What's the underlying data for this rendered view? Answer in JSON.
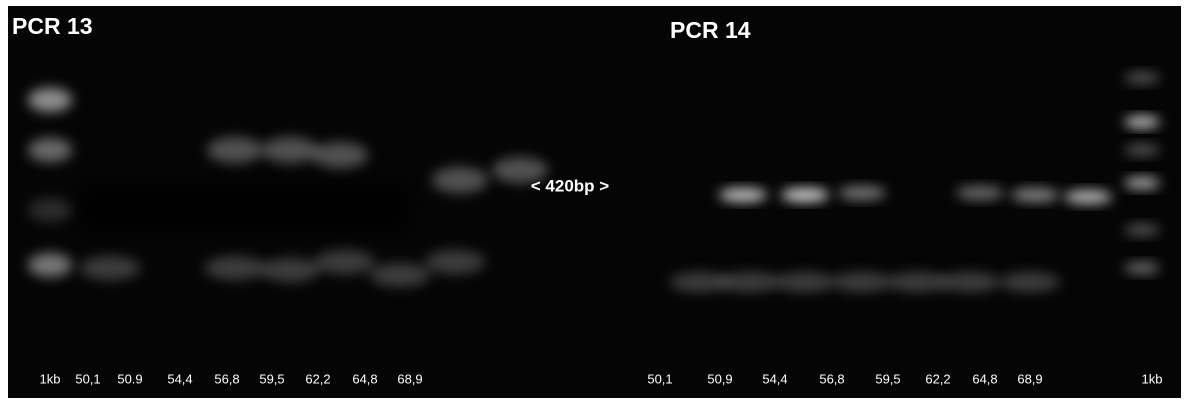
{
  "panels": [
    {
      "title": "PCR 13",
      "lanes": [
        "1kb",
        "50,1",
        "50.9",
        "54,4",
        "56,8",
        "59,5",
        "62,2",
        "64,8",
        "68,9"
      ]
    },
    {
      "title": "PCR 14",
      "lanes": [
        "50,1",
        "50,9",
        "54,4",
        "56,8",
        "59,5",
        "62,2",
        "64,8",
        "68,9",
        "1kb"
      ]
    }
  ],
  "annotation": "< 420bp >"
}
